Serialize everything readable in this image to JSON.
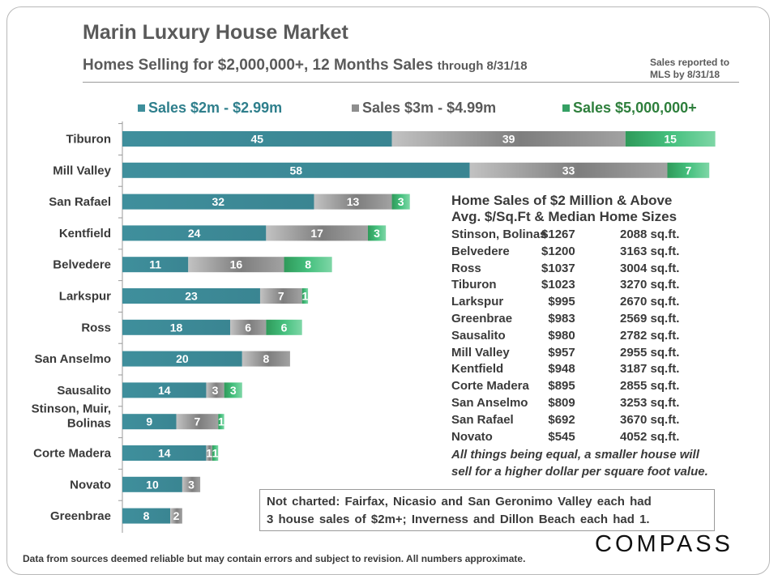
{
  "header": {
    "title": "Marin Luxury House Market",
    "subtitle_main": "Homes Selling for $2,000,000+, 12 Months Sales",
    "subtitle_suffix": "through 8/31/18",
    "report_note_line1": "Sales reported to",
    "report_note_line2": "MLS by 8/31/18"
  },
  "colors": {
    "series1": "#3e8e9b",
    "series2": "#8e8e8e",
    "series3": "#35a064",
    "text": "#3a3a3a",
    "title": "#5a5a5a"
  },
  "chart_data": {
    "type": "bar",
    "orientation": "horizontal",
    "stacked": true,
    "categories": [
      "Tiburon",
      "Mill Valley",
      "San Rafael",
      "Kentfield",
      "Belvedere",
      "Larkspur",
      "Ross",
      "San Anselmo",
      "Sausalito",
      "Stinson, Muir, Bolinas",
      "Corte Madera",
      "Novato",
      "Greenbrae"
    ],
    "category_lines": [
      [
        "Tiburon"
      ],
      [
        "Mill Valley"
      ],
      [
        "San Rafael"
      ],
      [
        "Kentfield"
      ],
      [
        "Belvedere"
      ],
      [
        "Larkspur"
      ],
      [
        "Ross"
      ],
      [
        "San Anselmo"
      ],
      [
        "Sausalito"
      ],
      [
        "Stinson, Muir,",
        "Bolinas"
      ],
      [
        "Corte Madera"
      ],
      [
        "Novato"
      ],
      [
        "Greenbrae"
      ]
    ],
    "series": [
      {
        "name": "Sales $2m - $2.99m",
        "values": [
          45,
          58,
          32,
          24,
          11,
          23,
          18,
          20,
          14,
          9,
          14,
          10,
          8
        ]
      },
      {
        "name": "Sales $3m - $4.99m",
        "values": [
          39,
          33,
          13,
          17,
          16,
          7,
          6,
          8,
          3,
          7,
          1,
          3,
          2
        ]
      },
      {
        "name": "Sales $5,000,000+",
        "values": [
          15,
          7,
          3,
          3,
          8,
          1,
          6,
          0,
          3,
          1,
          1,
          0,
          0
        ]
      }
    ],
    "xlim": [
      0,
      100
    ],
    "grid": false,
    "legend_position": "top"
  },
  "table": {
    "title_line1": "Home Sales of $2 Million & Above",
    "title_line2": "Avg. $/Sq.Ft & Median Home Sizes",
    "rows": [
      {
        "area": "Stinson, Bolinas",
        "price": "$1267",
        "size": "2088 sq.ft."
      },
      {
        "area": "Belvedere",
        "price": "$1200",
        "size": "3163 sq.ft."
      },
      {
        "area": "Ross",
        "price": "$1037",
        "size": "3004 sq.ft."
      },
      {
        "area": "Tiburon",
        "price": "$1023",
        "size": "3270 sq.ft."
      },
      {
        "area": "Larkspur",
        "price": "$995",
        "size": "2670 sq.ft."
      },
      {
        "area": "Greenbrae",
        "price": "$983",
        "size": "2569 sq.ft."
      },
      {
        "area": "Sausalito",
        "price": "$980",
        "size": "2782 sq.ft."
      },
      {
        "area": "Mill  Valley",
        "price": "$957",
        "size": "2955 sq.ft."
      },
      {
        "area": "Kentfield",
        "price": "$948",
        "size": "3187 sq.ft."
      },
      {
        "area": "Corte Madera",
        "price": "$895",
        "size": "2855 sq.ft."
      },
      {
        "area": "San Anselmo",
        "price": "$809",
        "size": "3253 sq.ft."
      },
      {
        "area": "San Rafael",
        "price": "$692",
        "size": "3670 sq.ft."
      },
      {
        "area": "Novato",
        "price": "$545",
        "size": "4052 sq.ft."
      }
    ],
    "note_line1": "All things being equal, a smaller house will",
    "note_line2": "sell for a higher dollar per square foot value."
  },
  "not_charted": {
    "line1": "Not charted: Fairfax, Nicasio and San Geronimo Valley each had",
    "line2": "3 house sales of $2m+; Inverness and Dillon Beach each had 1."
  },
  "footer": "Data from  sources  deemed reliable but may contain errors and subject to revision. All numbers approximate.",
  "logo": "COMPASS"
}
